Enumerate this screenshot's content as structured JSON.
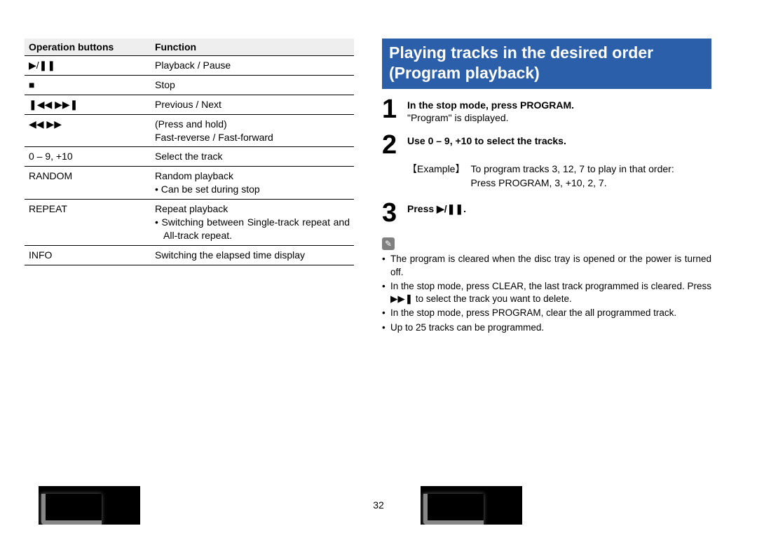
{
  "pageNumber": "32",
  "table": {
    "headers": {
      "buttons": "Operation buttons",
      "function": "Function"
    },
    "rows": [
      {
        "btn_html": "▶/❚❚",
        "func_html": "Playback / Pause"
      },
      {
        "btn_html": "■",
        "func_html": "Stop"
      },
      {
        "btn_html": "❚◀◀ ▶▶❚",
        "func_html": "Previous / Next"
      },
      {
        "btn_html": "◀◀ ▶▶",
        "func_html": "(Press and hold)\nFast-reverse / Fast-forward"
      },
      {
        "btn_html": "0 – 9, +10",
        "func_html": "Select the track"
      },
      {
        "btn_html": "RANDOM",
        "func_html": "Random playback\n• Can be set during stop"
      },
      {
        "btn_html": "REPEAT",
        "func_html": "Repeat playback\n• Switching between Single-track repeat and All-track repeat.",
        "justify": true
      },
      {
        "btn_html": "INFO",
        "func_html": "Switching the elapsed time display"
      }
    ]
  },
  "banner": {
    "line1": "Playing tracks in the desired order",
    "line2": "(Program playback)"
  },
  "steps": [
    {
      "n": "1",
      "title": "In the stop mode, press PROGRAM.",
      "desc": "\"Program\" is displayed."
    },
    {
      "n": "2",
      "title": "Use 0 – 9, +10 to select the tracks."
    },
    {
      "n": "3",
      "title_html": "Press ▶/❚❚."
    }
  ],
  "example": {
    "label": "【Example】",
    "line1": "To program tracks 3, 12, 7 to play in that order:",
    "line2": "Press PROGRAM, 3, +10, 2, 7."
  },
  "notes": [
    {
      "text": "The program is cleared when the disc tray is opened or the power is turned off."
    },
    {
      "html": "In the stop mode, press CLEAR, the last track programmed is cleared. Press <span class=\"sym\">▶▶❚</span> to select the track you want to delete."
    },
    {
      "text": "In the stop mode, press PROGRAM, clear the all programmed track."
    },
    {
      "text": "Up to 25 tracks can be programmed."
    }
  ],
  "noteIcon": "✎"
}
